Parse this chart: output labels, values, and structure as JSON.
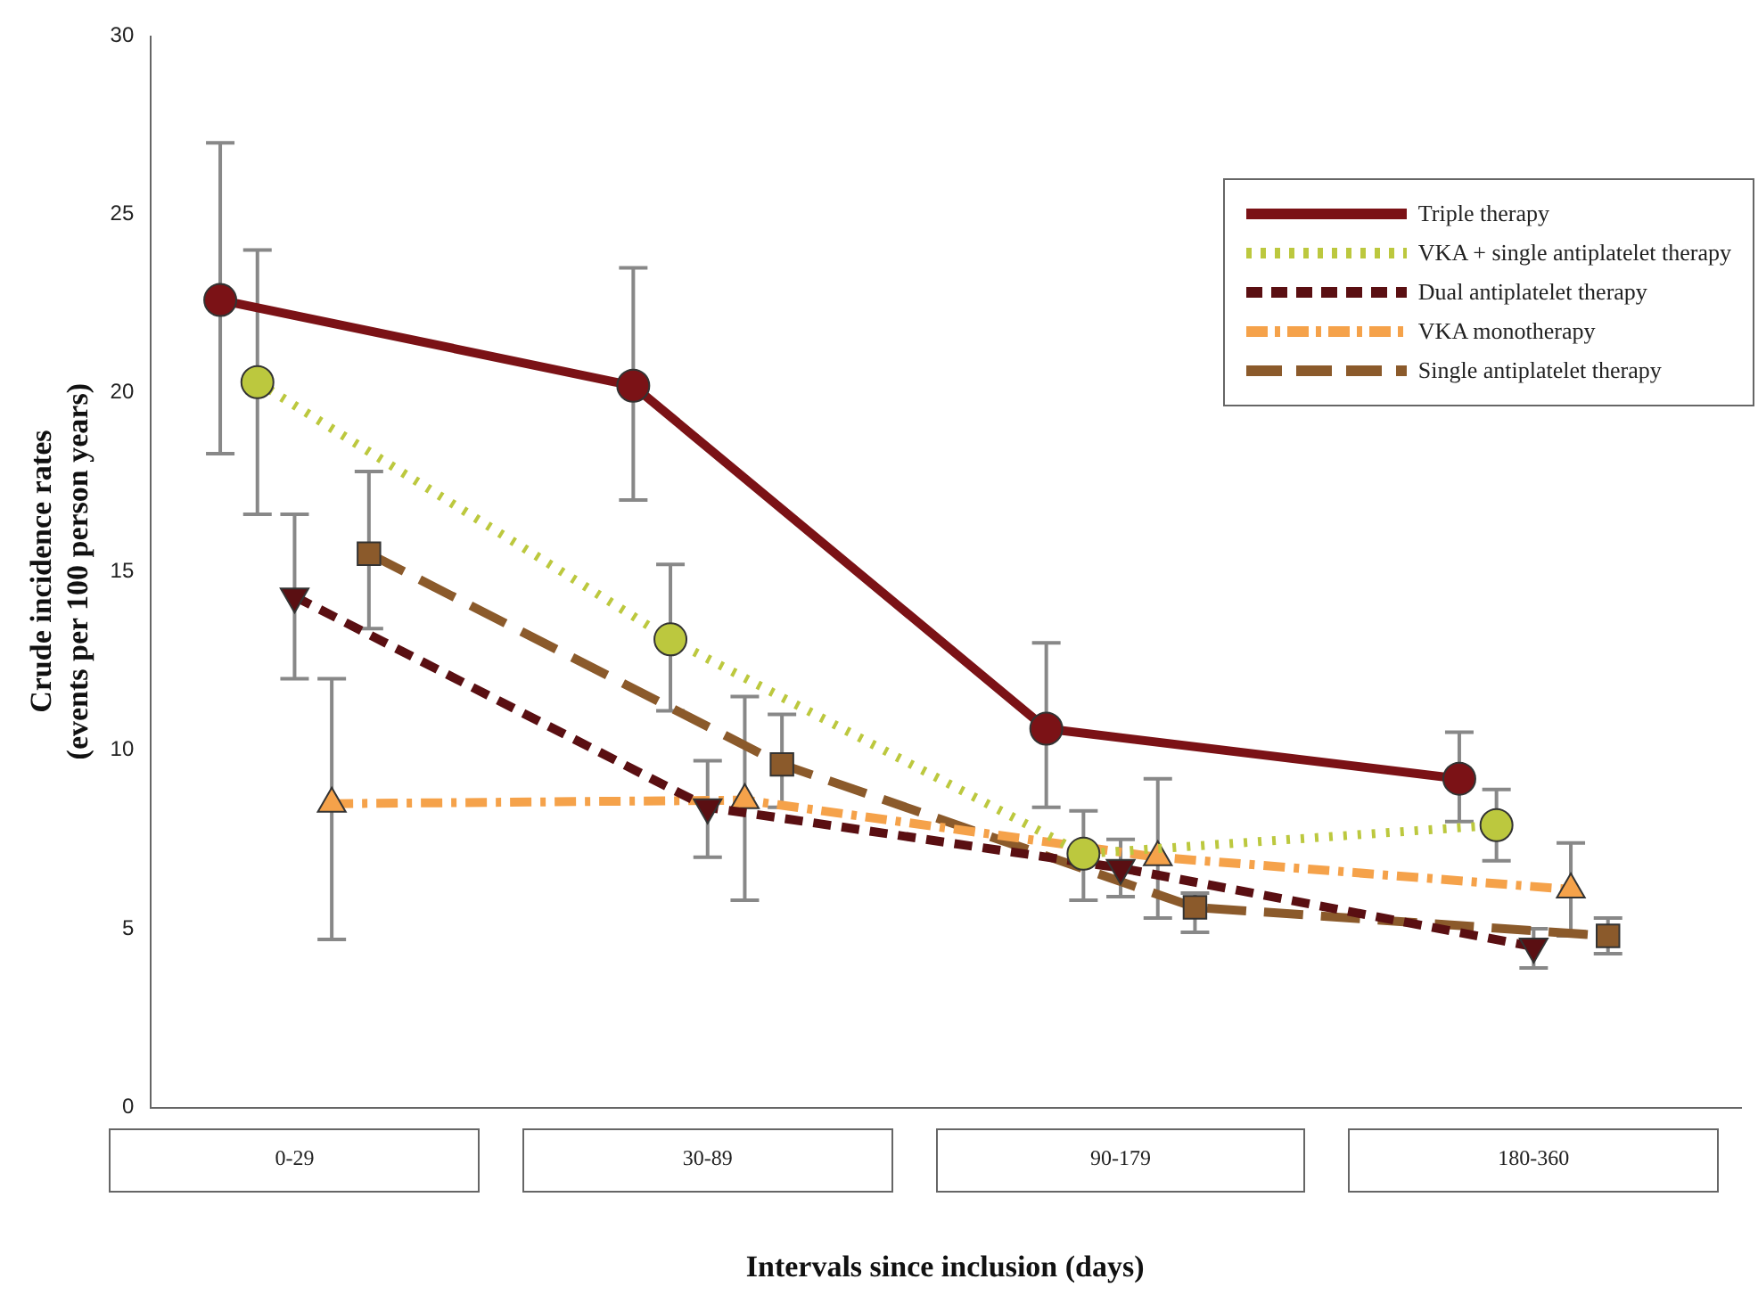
{
  "chart_data": {
    "type": "line",
    "xlabel": "Intervals since inclusion (days)",
    "ylabel": "Crude incidence rates\n(events per 100 person years)",
    "categories": [
      "0-29",
      "30-89",
      "90-179",
      "180-360"
    ],
    "ylim": [
      0,
      30
    ],
    "yticks": [
      0,
      5,
      10,
      15,
      20,
      25,
      30
    ],
    "grid": false,
    "legend": "top right",
    "series": [
      {
        "name": "Triple therapy",
        "color": "#7b1216",
        "marker": "circle",
        "line_style": "solid",
        "values": [
          22.6,
          20.2,
          10.6,
          9.2
        ],
        "errors": [
          [
            18.3,
            27
          ],
          [
            17,
            23.5
          ],
          [
            8.4,
            13
          ],
          [
            8,
            10.5
          ]
        ]
      },
      {
        "name": "VKA + single antiplatelet therapy",
        "color": "#bcc83e",
        "marker": "circle",
        "line_style": "dotted",
        "values": [
          20.3,
          13.1,
          7.1,
          7.9
        ],
        "errors": [
          [
            16.6,
            24
          ],
          [
            11.1,
            15.2
          ],
          [
            5.8,
            8.3
          ],
          [
            6.9,
            8.9
          ]
        ]
      },
      {
        "name": "Dual antiplatelet therapy",
        "color": "#5a0f12",
        "marker": "triangle-down",
        "line_style": "dashed",
        "values": [
          14.3,
          8.4,
          6.7,
          4.5
        ],
        "errors": [
          [
            12,
            16.6
          ],
          [
            7,
            9.7
          ],
          [
            5.9,
            7.5
          ],
          [
            3.9,
            5
          ]
        ]
      },
      {
        "name": "VKA monotherapy",
        "color": "#f5a24a",
        "marker": "triangle",
        "line_style": "dashdot",
        "values": [
          8.5,
          8.6,
          7,
          6.1
        ],
        "errors": [
          [
            4.7,
            12
          ],
          [
            5.8,
            11.5
          ],
          [
            5.3,
            9.2
          ],
          [
            4.8,
            7.4
          ]
        ]
      },
      {
        "name": "Single antiplatelet therapy",
        "color": "#8b5a2b",
        "marker": "square",
        "line_style": "longdash",
        "values": [
          15.5,
          9.6,
          5.6,
          4.8
        ],
        "errors": [
          [
            13.4,
            17.8
          ],
          [
            8.4,
            11
          ],
          [
            4.9,
            6
          ],
          [
            4.3,
            5.3
          ]
        ]
      }
    ]
  }
}
